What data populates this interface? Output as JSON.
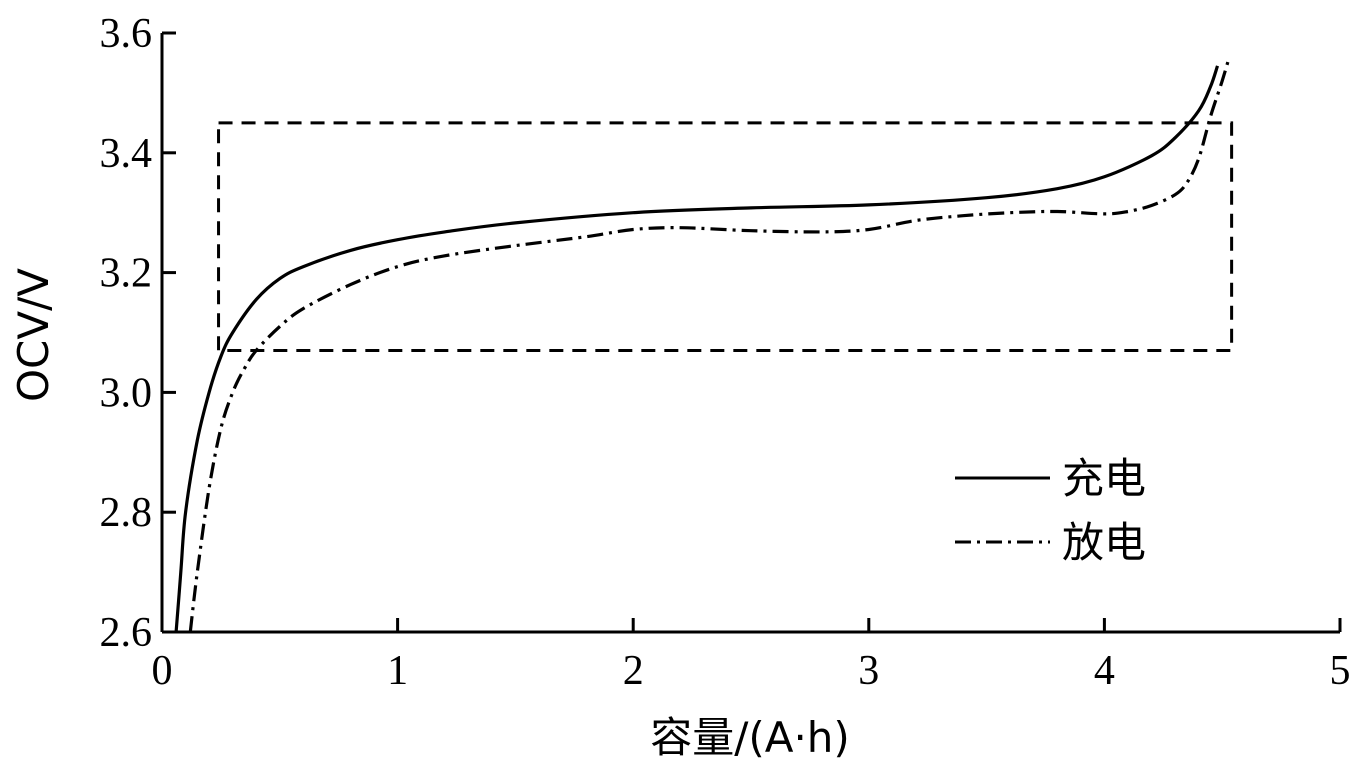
{
  "chart_data": {
    "type": "line",
    "xlabel": "容量/(A·h)",
    "ylabel": "OCV/V",
    "xlim": [
      0,
      5
    ],
    "ylim": [
      2.6,
      3.6
    ],
    "xticks": [
      "0",
      "1",
      "2",
      "3",
      "4",
      "5"
    ],
    "yticks": [
      "2.6",
      "2.8",
      "3.0",
      "3.2",
      "3.4",
      "3.6"
    ],
    "grid": false,
    "legend_position": "lower-right",
    "series": [
      {
        "name": "充电",
        "style": "solid",
        "color": "#000000",
        "x": [
          0.06,
          0.08,
          0.1,
          0.15,
          0.2,
          0.25,
          0.3,
          0.4,
          0.5,
          0.6,
          0.8,
          1.0,
          1.2,
          1.5,
          2.0,
          2.5,
          3.0,
          3.5,
          3.8,
          4.0,
          4.2,
          4.3,
          4.4,
          4.45,
          4.48
        ],
        "y": [
          2.6,
          2.7,
          2.8,
          2.92,
          3.0,
          3.06,
          3.1,
          3.155,
          3.19,
          3.21,
          3.237,
          3.255,
          3.268,
          3.283,
          3.3,
          3.308,
          3.313,
          3.325,
          3.34,
          3.36,
          3.395,
          3.425,
          3.47,
          3.51,
          3.545
        ]
      },
      {
        "name": "放电",
        "style": "dash-dot",
        "color": "#000000",
        "x": [
          0.12,
          0.15,
          0.2,
          0.25,
          0.3,
          0.35,
          0.4,
          0.5,
          0.6,
          0.8,
          1.0,
          1.2,
          1.5,
          1.8,
          2.0,
          2.2,
          2.5,
          2.8,
          3.0,
          3.2,
          3.4,
          3.6,
          3.8,
          4.0,
          4.1,
          4.2,
          4.3,
          4.35,
          4.4,
          4.45,
          4.5,
          4.53
        ],
        "y": [
          2.6,
          2.7,
          2.84,
          2.94,
          3.0,
          3.04,
          3.07,
          3.11,
          3.14,
          3.18,
          3.21,
          3.228,
          3.245,
          3.26,
          3.272,
          3.275,
          3.27,
          3.268,
          3.272,
          3.287,
          3.295,
          3.3,
          3.302,
          3.298,
          3.302,
          3.312,
          3.33,
          3.35,
          3.39,
          3.46,
          3.52,
          3.56
        ]
      }
    ],
    "annotations": [
      {
        "type": "dashed-rectangle",
        "x": [
          0.24,
          4.54
        ],
        "y": [
          3.07,
          3.45
        ]
      }
    ]
  }
}
